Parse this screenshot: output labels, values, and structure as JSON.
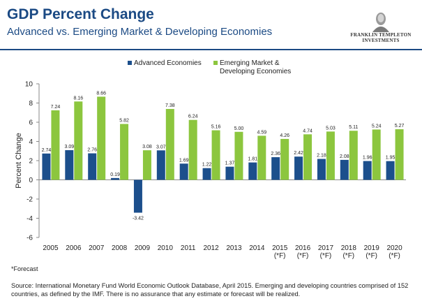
{
  "header": {
    "title": "GDP Percent Change",
    "subtitle": "Advanced vs. Emerging Market & Developing Economies",
    "logo_line1": "FRANKLIN TEMPLETON",
    "logo_line2": "INVESTMENTS"
  },
  "footer": {
    "footnote": "*Forecast",
    "source": "Source: International Monetary Fund World Economic Outlook Database, April 2015. Emerging and developing countries comprised of 152 countries, as defined by the IMF. There is no assurance that any estimate or forecast will be realized."
  },
  "colors": {
    "advanced": "#1c4f8c",
    "emerging": "#8cc63e",
    "title": "#1b4a84"
  },
  "chart_data": {
    "type": "bar",
    "categories": [
      "2005",
      "2006",
      "2007",
      "2008",
      "2009",
      "2010",
      "2011",
      "2012",
      "2013",
      "2014",
      "2015\n(*F)",
      "2016\n(*F)",
      "2017\n(*F)",
      "2018\n(*F)",
      "2019\n(*F)",
      "2020\n(*F)"
    ],
    "series": [
      {
        "name": "Advanced Economies",
        "values": [
          2.74,
          3.09,
          2.76,
          0.19,
          -3.42,
          3.07,
          1.69,
          1.22,
          1.37,
          1.81,
          2.36,
          2.42,
          2.18,
          2.08,
          1.96,
          1.95
        ],
        "labels": [
          "2.74",
          "3.09",
          "2.76",
          "0.19",
          "-3.42",
          "3.07",
          "1.69",
          "1.22",
          "1.37",
          "1.81",
          "2.36",
          "2.42",
          "2.18",
          "2.08",
          "1.96",
          "1.95"
        ]
      },
      {
        "name": "Emerging Market & Developing Economies",
        "legend_lines": [
          "Emerging Market &",
          "Developing Economies"
        ],
        "values": [
          7.24,
          8.16,
          8.66,
          5.82,
          3.08,
          7.38,
          6.24,
          5.16,
          5.0,
          4.59,
          4.26,
          4.74,
          5.03,
          5.11,
          5.24,
          5.27
        ],
        "labels": [
          "7.24",
          "8.16",
          "8.66",
          "5.82",
          "3.08",
          "7.38",
          "6.24",
          "5.16",
          "5.00",
          "4.59",
          "4.26",
          "4.74",
          "5.03",
          "5.11",
          "5.24",
          "5.27"
        ]
      }
    ],
    "ylabel": "Percent Change",
    "ylim": [
      -6,
      10
    ],
    "yticks": [
      -6,
      -4,
      -2,
      0,
      2,
      4,
      6,
      8,
      10
    ],
    "grid": false,
    "legend_position": "top-center"
  }
}
